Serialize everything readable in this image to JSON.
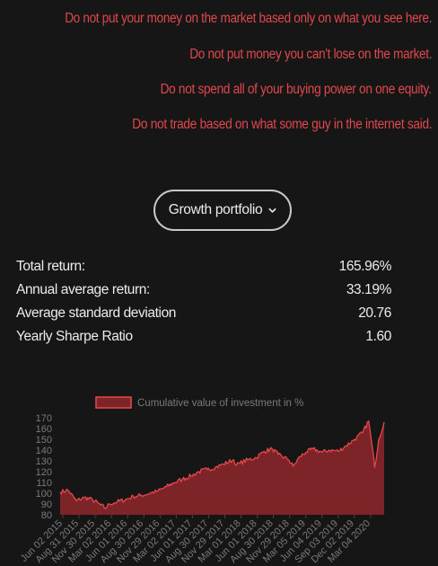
{
  "warnings": [
    "Do not put your money on the market based only on what you see here.",
    "Do not put money you can't lose on the market.",
    "Do not spend all of your buying power on one equity.",
    "Do not trade based on what some guy in the internet said."
  ],
  "portfolio_selector": {
    "selected": "Growth portfolio",
    "icon": "chevron-down-icon"
  },
  "stats": [
    {
      "label": "Total return:",
      "value": "165.96%"
    },
    {
      "label": "Annual average return:",
      "value": "33.19%"
    },
    {
      "label": "Average standard deviation",
      "value": "20.76"
    },
    {
      "label": "Yearly Sharpe Ratio",
      "value": "1.60"
    }
  ],
  "colors": {
    "background": "#161616",
    "warning_text": "#e0484c",
    "text": "#ececec",
    "series_fill": "#7d2428",
    "series_line": "#e5484c",
    "axis_text": "#7a7a7a"
  },
  "chart_data": {
    "type": "area",
    "legend": [
      "Cumulative value of investment in %"
    ],
    "legend_position": "top",
    "grid": false,
    "ylim": [
      80,
      170
    ],
    "yticks": [
      80,
      90,
      100,
      110,
      120,
      130,
      140,
      150,
      160,
      170
    ],
    "xtick_labels": [
      "Jun 02 2015",
      "Aug 31 2015",
      "Nov 30 2015",
      "Mar 02 2016",
      "Jun 01 2016",
      "Aug 30 2016",
      "Nov 29 2016",
      "Mar 02 2017",
      "Jun 01 2017",
      "Aug 30 2017",
      "Nov 29 2017",
      "Mar 01 2018",
      "Jun 01 2018",
      "Aug 30 2018",
      "Nov 29 2018",
      "Mar 05 2019",
      "Jun 04 2019",
      "Sep 03 2019",
      "Dec 02 2019",
      "Mar 04 2020"
    ],
    "series": [
      {
        "name": "Cumulative value of investment in %",
        "x": [
          "Jun 02 2015",
          "Jul 15 2015",
          "Aug 31 2015",
          "Oct 15 2015",
          "Nov 30 2015",
          "Jan 15 2016",
          "Feb 11 2016",
          "Mar 02 2016",
          "Apr 15 2016",
          "Jun 01 2016",
          "Jul 15 2016",
          "Aug 30 2016",
          "Oct 15 2016",
          "Nov 29 2016",
          "Jan 15 2017",
          "Mar 02 2017",
          "Apr 15 2017",
          "Jun 01 2017",
          "Jul 15 2017",
          "Aug 30 2017",
          "Oct 15 2017",
          "Nov 29 2017",
          "Jan 26 2018",
          "Feb 09 2018",
          "Mar 01 2018",
          "Apr 15 2018",
          "Jun 01 2018",
          "Jul 15 2018",
          "Aug 30 2018",
          "Oct 01 2018",
          "Nov 29 2018",
          "Dec 24 2018",
          "Jan 31 2019",
          "Mar 05 2019",
          "Apr 15 2019",
          "Jun 04 2019",
          "Jul 15 2019",
          "Sep 03 2019",
          "Oct 15 2019",
          "Dec 02 2019",
          "Jan 15 2020",
          "Feb 19 2020",
          "Mar 04 2020",
          "Mar 23 2020",
          "Apr 15 2020",
          "May 15 2020"
        ],
        "values": [
          101,
          103,
          93,
          96,
          94,
          89,
          86,
          90,
          92,
          94,
          97,
          98,
          100,
          102,
          106,
          110,
          113,
          116,
          120,
          122,
          124,
          127,
          131,
          126,
          128,
          131,
          133,
          139,
          141,
          136,
          131,
          125,
          134,
          138,
          141,
          138,
          140,
          139,
          144,
          150,
          156,
          167,
          150,
          124,
          150,
          166
        ]
      }
    ]
  }
}
